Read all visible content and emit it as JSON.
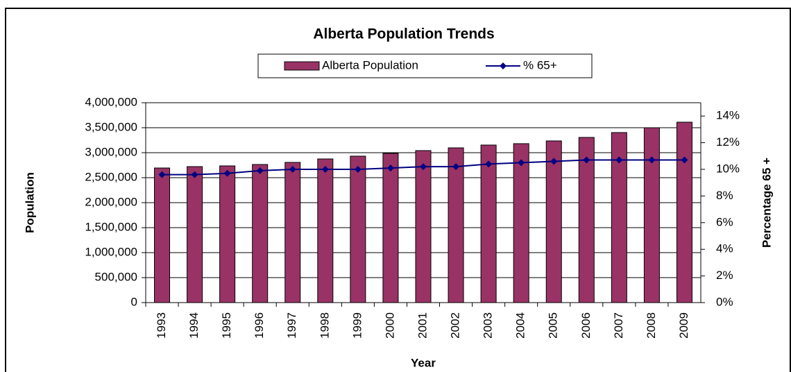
{
  "chart_data": {
    "type": "bar",
    "title": "Alberta Population Trends",
    "x_label": "Year",
    "y_label": "Population",
    "y2_label": "Percentage 65 +",
    "categories": [
      "1993",
      "1994",
      "1995",
      "1996",
      "1997",
      "1998",
      "1999",
      "2000",
      "2001",
      "2002",
      "2003",
      "2004",
      "2005",
      "2006",
      "2007",
      "2008",
      "2009"
    ],
    "series": [
      {
        "name": "Alberta Population",
        "type": "bar",
        "color": "#993366",
        "values": [
          2694000,
          2722000,
          2736000,
          2764000,
          2806000,
          2875000,
          2931000,
          2986000,
          3042000,
          3097000,
          3153000,
          3181000,
          3236000,
          3306000,
          3403000,
          3500000,
          3611000
        ]
      },
      {
        "name": "% 65+",
        "type": "line",
        "axis": "y2",
        "color": "#000080",
        "values": [
          9.6,
          9.6,
          9.7,
          9.9,
          10.0,
          10.0,
          10.0,
          10.1,
          10.2,
          10.2,
          10.4,
          10.5,
          10.6,
          10.7,
          10.7,
          10.7,
          10.7
        ]
      }
    ],
    "ylim": [
      0,
      4000000
    ],
    "yticks": [
      0,
      {
        "value": 500000,
        "label": "500,000"
      },
      {
        "value": 1000000,
        "label": "1,000,000"
      },
      {
        "value": 1500000,
        "label": "1,500,000"
      },
      {
        "value": 2000000,
        "label": "2,000,000"
      },
      {
        "value": 2500000,
        "label": "2,500,000"
      },
      {
        "value": 3000000,
        "label": "3,000,000"
      },
      {
        "value": 3500000,
        "label": "3,500,000"
      },
      {
        "value": 4000000,
        "label": "4,000,000"
      }
    ],
    "y2lim": [
      0,
      15
    ],
    "y2ticks": [
      {
        "value": 0,
        "label": "0%"
      },
      {
        "value": 2,
        "label": "2%"
      },
      {
        "value": 4,
        "label": "4%"
      },
      {
        "value": 6,
        "label": "6%"
      },
      {
        "value": 8,
        "label": "8%"
      },
      {
        "value": 10,
        "label": "10%"
      },
      {
        "value": 12,
        "label": "12%"
      },
      {
        "value": 14,
        "label": "14%"
      }
    ],
    "grid": true,
    "legend": "top"
  }
}
